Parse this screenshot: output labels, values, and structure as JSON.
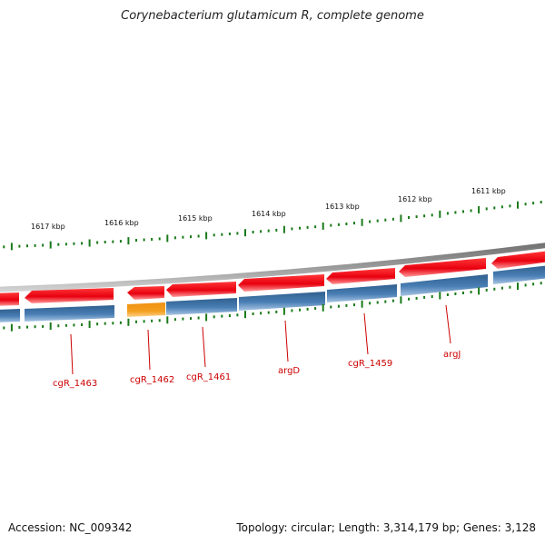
{
  "title": "Corynebacterium glutamicum R, complete genome",
  "footer": {
    "accession": "Accession: NC_009342",
    "topology": "Topology: circular; Length: 3,314,179 bp; Genes: 3,128"
  },
  "ruler": {
    "labels": [
      "1617 kbp",
      "1616 kbp",
      "1615 kbp",
      "1614 kbp",
      "1613 kbp",
      "1612 kbp",
      "1611 kbp"
    ]
  },
  "genes": [
    {
      "label": "cgR_1463",
      "color": "#3a6ea5"
    },
    {
      "label": "cgR_1462",
      "color": "#f5a020"
    },
    {
      "label": "cgR_1461",
      "color": "#3a6ea5"
    },
    {
      "label": "argD",
      "color": "#3a6ea5"
    },
    {
      "label": "cgR_1459",
      "color": "#3a6ea5"
    },
    {
      "label": "argJ",
      "color": "#3a6ea5"
    }
  ],
  "colors": {
    "backbone": "#888888",
    "forward_track": "#e8000f",
    "cds_track": "#3a6ea5",
    "highlight": "#f5a020",
    "ticks": "#1a7a1a",
    "gene_labels": "#cc0000"
  }
}
